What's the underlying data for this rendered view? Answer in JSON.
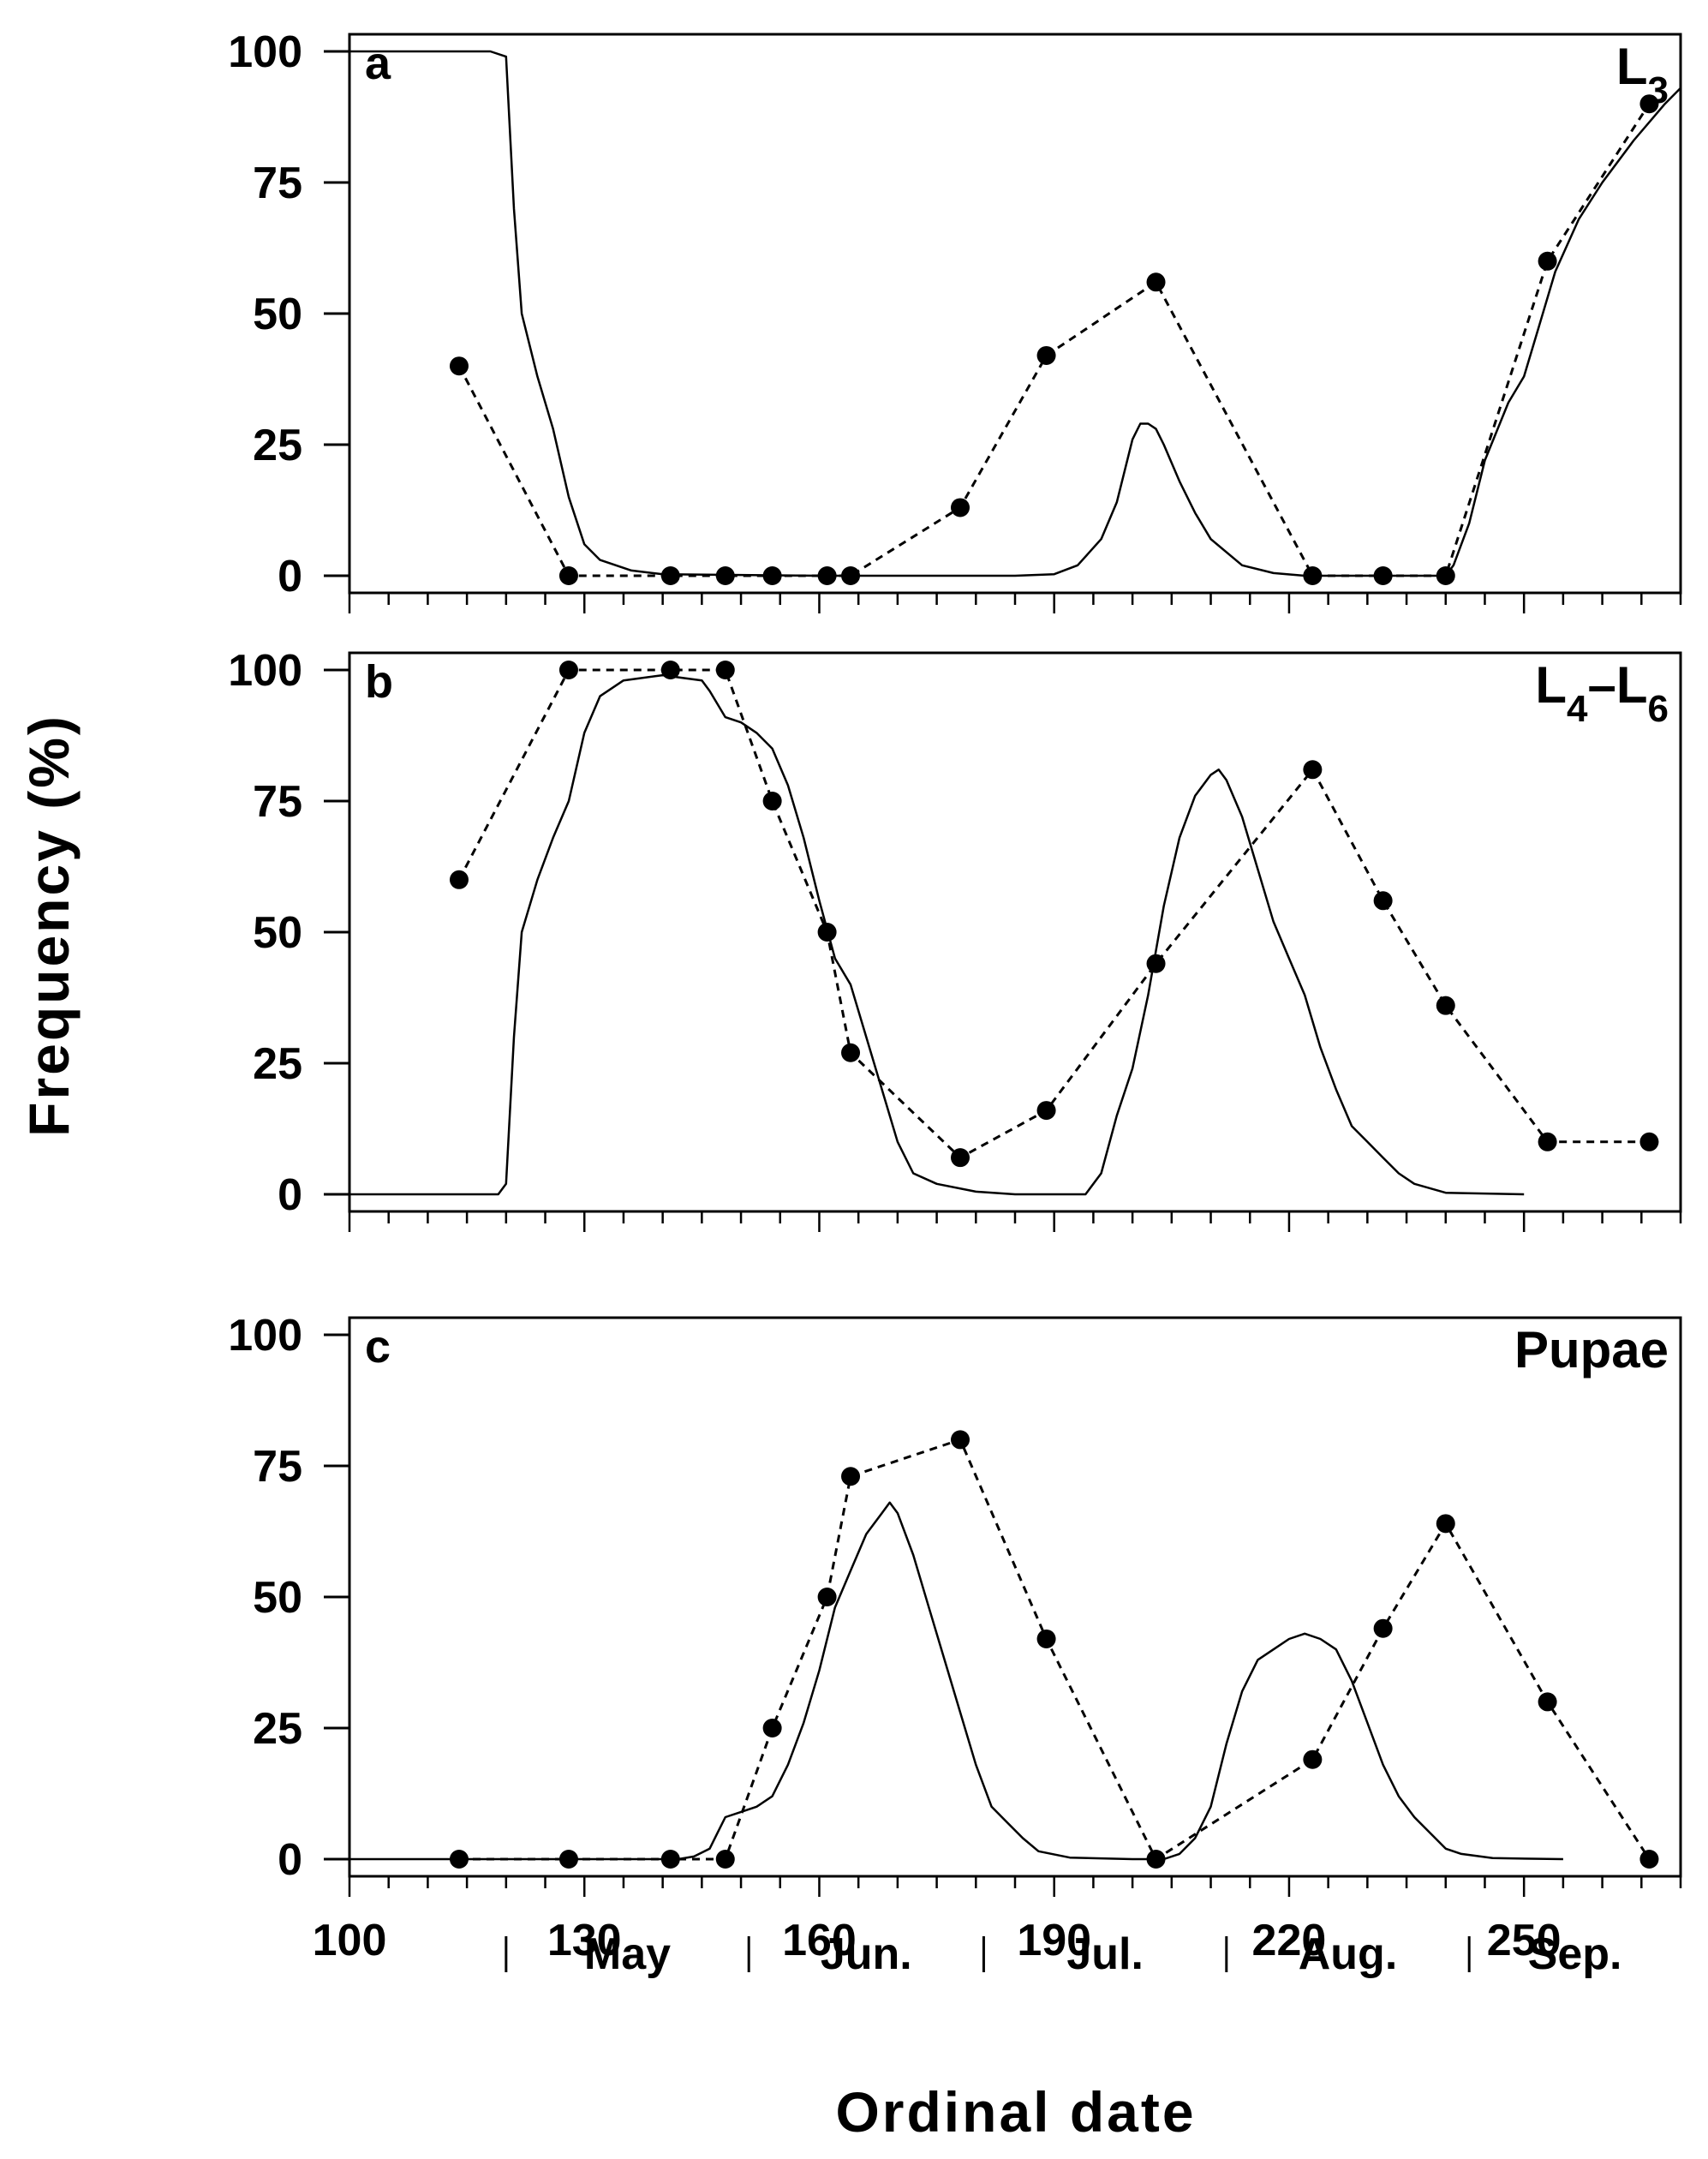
{
  "chart_data": {
    "type": "line",
    "xlabel": "Ordinal date",
    "ylabel": "Frequency (%)",
    "xlim": [
      100,
      270
    ],
    "ylim": [
      0,
      100
    ],
    "x_ticks": [
      100,
      130,
      160,
      190,
      220,
      250
    ],
    "y_ticks": [
      0,
      25,
      50,
      75,
      100
    ],
    "months": [
      {
        "label": "May",
        "start": 120,
        "end": 151
      },
      {
        "label": "Jun.",
        "start": 151,
        "end": 181
      },
      {
        "label": "Jul.",
        "start": 181,
        "end": 212
      },
      {
        "label": "Aug.",
        "start": 212,
        "end": 243
      },
      {
        "label": "Sep.",
        "start": 243,
        "end": 270
      }
    ],
    "panels": [
      {
        "letter": "a",
        "label_main": "L",
        "label_sub": "3",
        "observed": {
          "x": [
            114,
            128,
            141,
            148,
            154,
            161,
            164,
            178,
            189,
            203,
            223,
            232,
            240,
            253,
            266
          ],
          "y": [
            40,
            0,
            0,
            0,
            0,
            0,
            0,
            13,
            42,
            56,
            0,
            0,
            0,
            60,
            90
          ]
        },
        "model": {
          "x": [
            100,
            118,
            120,
            121,
            122,
            124,
            126,
            128,
            130,
            132,
            136,
            140,
            160,
            185,
            190,
            193,
            196,
            198,
            200,
            201,
            202,
            203,
            204,
            206,
            208,
            210,
            214,
            218,
            222,
            240,
            241,
            243,
            245,
            248,
            250,
            252,
            254,
            257,
            260,
            264,
            268,
            270
          ],
          "y": [
            100,
            100,
            99,
            70,
            50,
            38,
            28,
            15,
            6,
            3,
            1,
            0.3,
            0,
            0,
            0.3,
            2,
            7,
            14,
            26,
            29,
            29,
            28,
            25,
            18,
            12,
            7,
            2,
            0.5,
            0,
            0,
            2,
            10,
            22,
            33,
            38,
            48,
            58,
            68,
            75,
            83,
            90,
            93
          ]
        }
      },
      {
        "letter": "b",
        "label_main": "L",
        "label_sub": "4",
        "label_dash": "–L",
        "label_sub2": "6",
        "observed": {
          "x": [
            114,
            128,
            141,
            148,
            154,
            161,
            164,
            178,
            189,
            203,
            223,
            232,
            240,
            253,
            266
          ],
          "y": [
            60,
            100,
            100,
            100,
            75,
            50,
            27,
            7,
            16,
            44,
            81,
            56,
            36,
            10,
            10
          ]
        },
        "model": {
          "x": [
            100,
            119,
            120,
            121,
            122,
            124,
            126,
            128,
            130,
            132,
            135,
            140,
            145,
            146,
            148,
            150,
            152,
            154,
            156,
            158,
            160,
            162,
            164,
            166,
            168,
            170,
            172,
            175,
            180,
            185,
            194,
            196,
            198,
            200,
            202,
            204,
            206,
            208,
            210,
            211,
            212,
            214,
            216,
            218,
            220,
            222,
            224,
            226,
            228,
            230,
            232,
            234,
            236,
            240,
            250
          ],
          "y": [
            0,
            0,
            2,
            30,
            50,
            60,
            68,
            75,
            88,
            95,
            98,
            99,
            98,
            96,
            91,
            90,
            88,
            85,
            78,
            68,
            56,
            45,
            40,
            30,
            20,
            10,
            4,
            2,
            0.5,
            0,
            0,
            4,
            15,
            24,
            38,
            55,
            68,
            76,
            80,
            81,
            79,
            72,
            62,
            52,
            45,
            38,
            28,
            20,
            13,
            10,
            7,
            4,
            2,
            0.3,
            0
          ]
        }
      },
      {
        "letter": "c",
        "label_main": "Pupae",
        "observed": {
          "x": [
            114,
            128,
            141,
            148,
            154,
            161,
            164,
            178,
            189,
            203,
            223,
            232,
            240,
            253,
            266
          ],
          "y": [
            0,
            0,
            0,
            0,
            25,
            50,
            73,
            80,
            42,
            0,
            19,
            44,
            64,
            30,
            0
          ]
        },
        "model": {
          "x": [
            100,
            142,
            144,
            146,
            147,
            148,
            150,
            152,
            154,
            156,
            158,
            160,
            162,
            164,
            166,
            168,
            169,
            170,
            172,
            174,
            176,
            178,
            180,
            182,
            184,
            186,
            188,
            192,
            200,
            204,
            206,
            208,
            210,
            212,
            214,
            216,
            218,
            220,
            222,
            224,
            226,
            228,
            230,
            232,
            234,
            236,
            238,
            240,
            242,
            246,
            255
          ],
          "y": [
            0,
            0,
            0.5,
            2,
            5,
            8,
            9,
            10,
            12,
            18,
            26,
            36,
            48,
            55,
            62,
            66,
            68,
            66,
            58,
            48,
            38,
            28,
            18,
            10,
            7,
            4,
            1.5,
            0.3,
            0,
            0,
            1,
            4,
            10,
            22,
            32,
            38,
            40,
            42,
            43,
            42,
            40,
            34,
            26,
            18,
            12,
            8,
            5,
            2,
            1,
            0.2,
            0
          ]
        }
      }
    ]
  }
}
